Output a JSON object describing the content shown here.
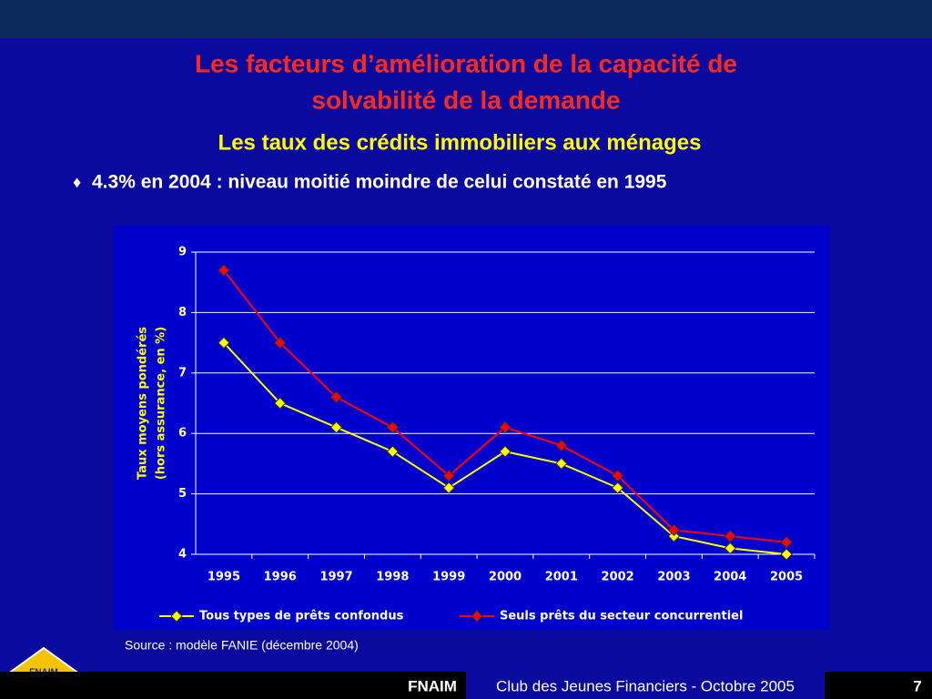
{
  "slide": {
    "title_lines": [
      "Les facteurs d’amélioration de la capacité de",
      "solvabilité de la demande"
    ],
    "subtitle": "Les taux des crédits immobiliers aux ménages",
    "bullet_symbol": "♦",
    "bullet": "4.3% en 2004 : niveau moitié moindre de celui constaté en 1995",
    "source": "Source : modèle FANIE (décembre 2004)",
    "logo": "FNAIM",
    "footer_brand": "FNAIM",
    "footer_text": "Club des Jeunes Financiers - Octobre 2005",
    "page_number": "7"
  },
  "chart_data": {
    "type": "line",
    "y_label_lines": [
      "Taux moyens pondérés",
      "(hors assurance, en %)"
    ],
    "categories": [
      "1995",
      "1996",
      "1997",
      "1998",
      "1999",
      "2000",
      "2001",
      "2002",
      "2003",
      "2004",
      "2005"
    ],
    "series": [
      {
        "name": "Tous types de prêts confondus",
        "color": "#ffff00",
        "values": [
          7.5,
          6.5,
          6.1,
          5.7,
          5.1,
          5.7,
          5.5,
          5.1,
          4.3,
          4.1,
          4.0
        ]
      },
      {
        "name": "Seuls prêts du secteur concurrentiel",
        "color": "#ff0000",
        "values": [
          8.7,
          7.5,
          6.6,
          6.1,
          5.3,
          6.1,
          5.8,
          5.3,
          4.4,
          4.3,
          4.2
        ]
      }
    ],
    "ylim": [
      4,
      9
    ],
    "yticks": [
      4,
      5,
      6,
      7,
      8,
      9
    ],
    "grid": true,
    "legend": "bottom"
  }
}
